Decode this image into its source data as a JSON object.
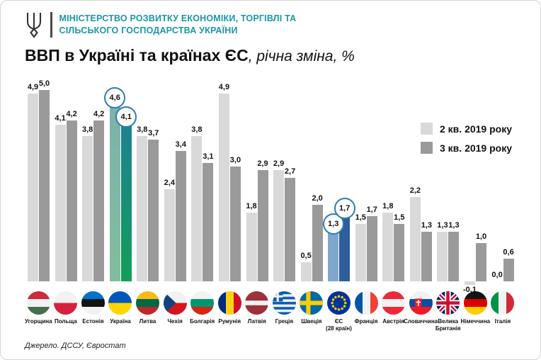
{
  "header": {
    "logo": "ukraine-trident",
    "ministry_line1": "МІНІСТЕРСТВО РОЗВИТКУ ЕКОНОМІКИ, ТОРГІВЛІ ТА",
    "ministry_line2": "СІЛЬСЬКОГО ГОСПОДАРСТВА УКРАЇНИ",
    "accent_color": "#1b96a4"
  },
  "title": {
    "main": "ВВП в Україні та країнах ЄС",
    "sub": ", річна зміна, %"
  },
  "source": "Джерело. ДССУ, Євростат",
  "chart_data": {
    "type": "bar",
    "title": "ВВП в Україні та країнах ЄС, річна зміна, %",
    "ylabel": "річна зміна, %",
    "ylim": [
      -0.2,
      5.2
    ],
    "grid": false,
    "decimal_separator": ",",
    "legend": {
      "position": "right",
      "items": [
        {
          "label": "2 кв. 2019 року",
          "color": "#d9d9d9"
        },
        {
          "label": "3 кв. 2019 року",
          "color": "#9a9a9a"
        }
      ]
    },
    "categories": [
      "Угорщина",
      "Польща",
      "Естонія",
      "Україна",
      "Литва",
      "Чехія",
      "Болгарія",
      "Румунія",
      "Латвія",
      "Греція",
      "Швеція",
      "ЄС (28 країн)",
      "Франція",
      "Австрія",
      "Словаччина",
      "Велика Британія",
      "Німеччина",
      "Італія"
    ],
    "category_label_lines": [
      [
        "Угорщина"
      ],
      [
        "Польща"
      ],
      [
        "Естонія"
      ],
      [
        "Україна"
      ],
      [
        "Литва"
      ],
      [
        "Чехія"
      ],
      [
        "Болгарія"
      ],
      [
        "Румунія"
      ],
      [
        "Латвія"
      ],
      [
        "Греція"
      ],
      [
        "Швеція"
      ],
      [
        "ЄС",
        "(28 країн)"
      ],
      [
        "Франція"
      ],
      [
        "Австрія"
      ],
      [
        "Словаччина"
      ],
      [
        "Велика",
        "Британія"
      ],
      [
        "Німеччина"
      ],
      [
        "Італія"
      ]
    ],
    "flags": [
      "hungary",
      "poland",
      "estonia",
      "ukraine",
      "lithuania",
      "czechia",
      "bulgaria",
      "romania",
      "latvia",
      "greece",
      "sweden",
      "eu",
      "france",
      "austria",
      "slovakia",
      "uk",
      "germany",
      "italy"
    ],
    "series": [
      {
        "name": "2 кв. 2019 року",
        "values": [
          4.9,
          4.1,
          3.8,
          4.6,
          3.8,
          2.4,
          3.8,
          4.9,
          1.8,
          2.9,
          0.5,
          1.3,
          1.5,
          1.8,
          2.2,
          1.3,
          -0.1,
          0.0
        ]
      },
      {
        "name": "3 кв. 2019 року",
        "values": [
          5.0,
          4.2,
          4.2,
          4.1,
          3.7,
          3.4,
          3.1,
          3.0,
          2.9,
          2.7,
          2.0,
          1.7,
          1.7,
          1.5,
          1.3,
          1.3,
          1.0,
          0.6
        ]
      }
    ],
    "bar_colors": {
      "q2": "#d9d9d9",
      "q3": "#9a9a9a"
    },
    "highlights": [
      {
        "index": 3,
        "category": "Україна",
        "circled_labels": true,
        "circle_color": "#2c7cb0",
        "q2_color_top": "#7cb3ab",
        "q2_color_bottom": "#82bd9d",
        "q3_color_top": "#1f8191",
        "q3_color_bottom": "#129e59"
      },
      {
        "index": 11,
        "category": "ЄС (28 країн)",
        "circled_labels": true,
        "circle_color": "#2c7cb0",
        "q2_color_top": "#7fa7cc",
        "q2_color_bottom": "#7fa7cc",
        "q3_color_top": "#2e5e9b",
        "q3_color_bottom": "#2e5e9b"
      }
    ]
  }
}
